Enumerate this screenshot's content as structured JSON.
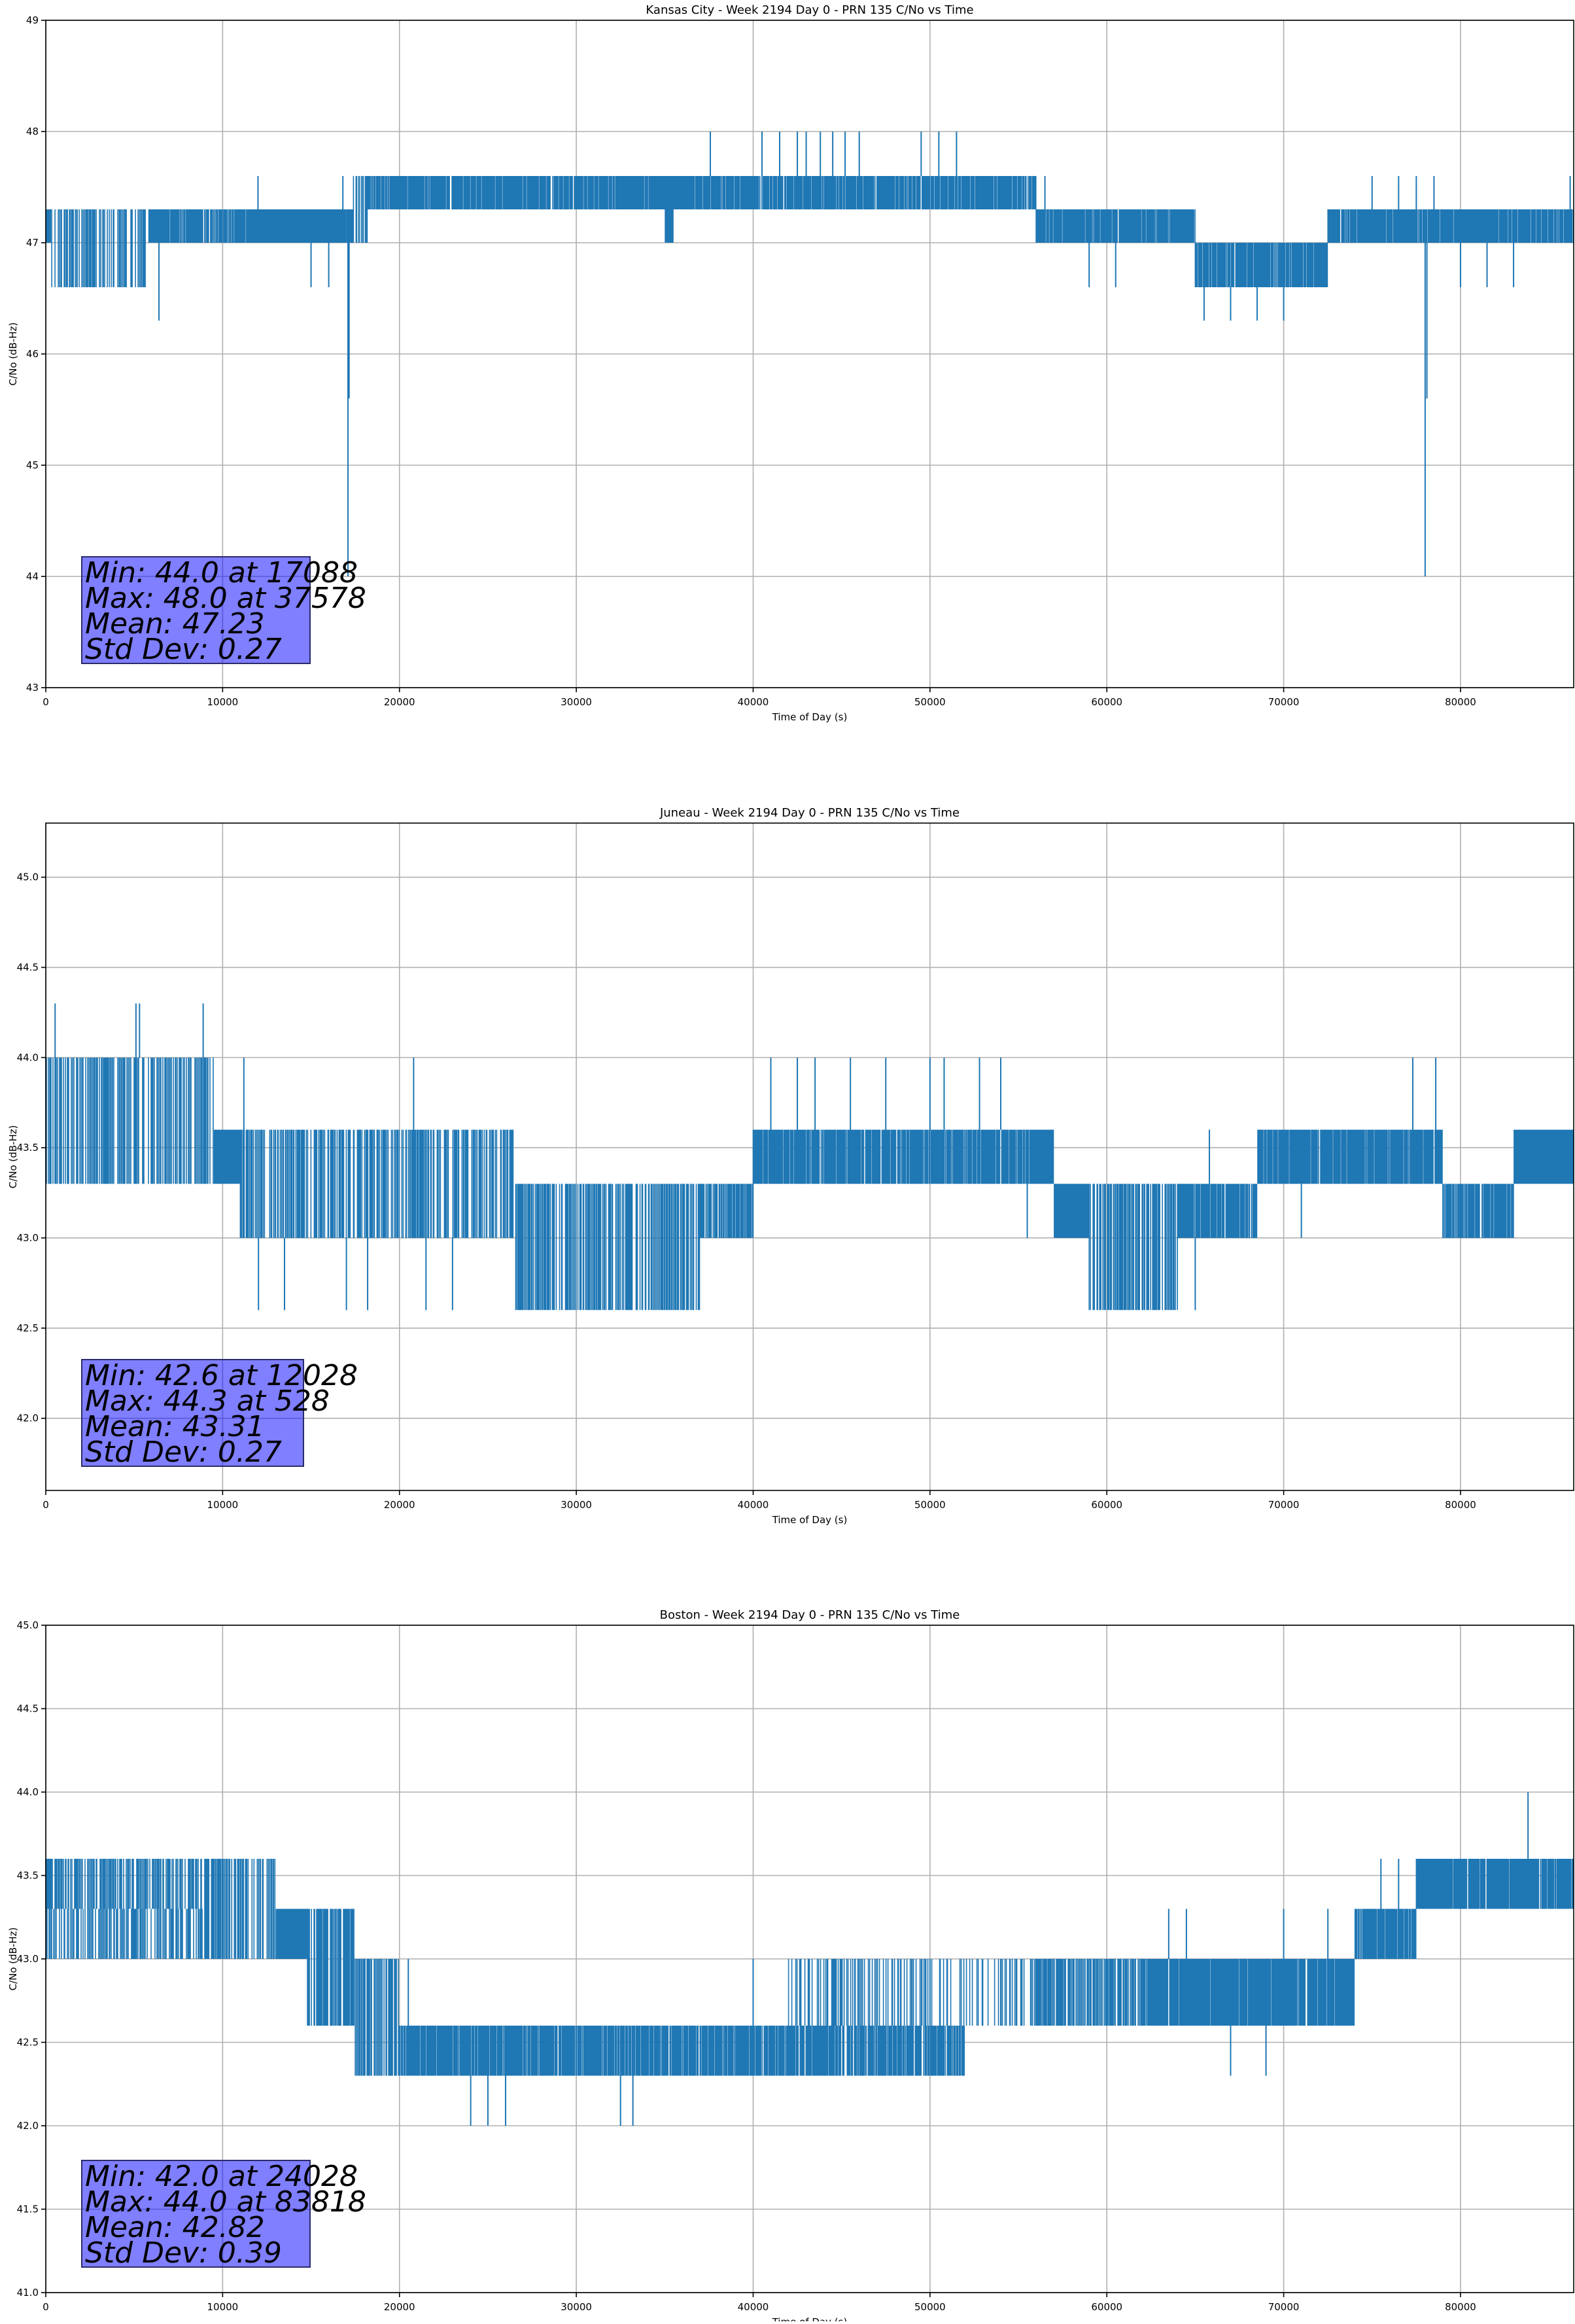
{
  "figure": {
    "background": "#ffffff"
  },
  "chart_data": [
    {
      "type": "line",
      "title": "Kansas City - Week 2194 Day 0 - PRN 135 C/No vs Time",
      "xlabel": "Time of Day (s)",
      "ylabel": "C/No (dB-Hz)",
      "xlim": [
        0,
        86400
      ],
      "ylim": [
        43,
        49
      ],
      "xticks": [
        0,
        10000,
        20000,
        30000,
        40000,
        50000,
        60000,
        70000,
        80000
      ],
      "yticks": [
        43,
        44,
        45,
        46,
        47,
        48,
        49
      ],
      "ytick_labels": [
        "43",
        "44",
        "45",
        "46",
        "47",
        "48",
        "49"
      ],
      "grid": true,
      "color": "#1f77b4",
      "series": [
        {
          "bands": [
            {
              "x": [
                0,
                300
              ],
              "low": 47.0,
              "high": 47.3
            },
            {
              "x": [
                300,
                5800
              ],
              "low": 46.6,
              "high": 47.3,
              "dense": 0.5
            },
            {
              "x": [
                5800,
                6800
              ],
              "low": 47.0,
              "high": 47.3
            },
            {
              "x": [
                6800,
                12000
              ],
              "low": 47.0,
              "high": 47.3,
              "dense": 0.85
            },
            {
              "x": [
                12000,
                17000
              ],
              "low": 47.0,
              "high": 47.3
            },
            {
              "x": [
                17000,
                17400
              ],
              "low": 47.0,
              "high": 47.3
            },
            {
              "x": [
                17400,
                18200
              ],
              "low": 47.0,
              "high": 47.6,
              "dense": 0.6
            },
            {
              "x": [
                18200,
                35000
              ],
              "low": 47.3,
              "high": 47.6,
              "dense": 0.9
            },
            {
              "x": [
                35000,
                35500
              ],
              "low": 47.0,
              "high": 47.6
            },
            {
              "x": [
                35500,
                56000
              ],
              "low": 47.3,
              "high": 47.6,
              "dense": 0.9
            },
            {
              "x": [
                56000,
                65000
              ],
              "low": 47.0,
              "high": 47.3,
              "dense": 0.9
            },
            {
              "x": [
                65000,
                72500
              ],
              "low": 46.6,
              "high": 47.0,
              "dense": 0.92
            },
            {
              "x": [
                72500,
                86400
              ],
              "low": 47.0,
              "high": 47.3,
              "dense": 0.92
            }
          ],
          "spikes": [
            {
              "x": 12000,
              "y": 47.6
            },
            {
              "x": 15000,
              "y": 46.6
            },
            {
              "x": 16000,
              "y": 46.6
            },
            {
              "x": 16800,
              "y": 47.6
            },
            {
              "x": 17088,
              "y": 44.0
            },
            {
              "x": 17150,
              "y": 45.6
            },
            {
              "x": 6400,
              "y": 46.3
            },
            {
              "x": 37578,
              "y": 48.0
            },
            {
              "x": 40500,
              "y": 48.0
            },
            {
              "x": 41500,
              "y": 48.0
            },
            {
              "x": 42500,
              "y": 48.0
            },
            {
              "x": 43000,
              "y": 48.0
            },
            {
              "x": 43800,
              "y": 48.0
            },
            {
              "x": 44500,
              "y": 48.0
            },
            {
              "x": 45200,
              "y": 48.0
            },
            {
              "x": 46000,
              "y": 48.0
            },
            {
              "x": 49500,
              "y": 48.0
            },
            {
              "x": 50500,
              "y": 48.0
            },
            {
              "x": 51500,
              "y": 48.0
            },
            {
              "x": 56500,
              "y": 47.6
            },
            {
              "x": 59000,
              "y": 46.6
            },
            {
              "x": 60500,
              "y": 46.6
            },
            {
              "x": 65500,
              "y": 46.3
            },
            {
              "x": 67000,
              "y": 46.3
            },
            {
              "x": 68500,
              "y": 46.3
            },
            {
              "x": 70000,
              "y": 46.3
            },
            {
              "x": 75000,
              "y": 47.6
            },
            {
              "x": 76500,
              "y": 47.6
            },
            {
              "x": 77500,
              "y": 47.6
            },
            {
              "x": 78000,
              "y": 44.0
            },
            {
              "x": 78100,
              "y": 45.6
            },
            {
              "x": 78500,
              "y": 47.6
            },
            {
              "x": 80000,
              "y": 46.6
            },
            {
              "x": 81500,
              "y": 46.6
            },
            {
              "x": 83000,
              "y": 46.6
            },
            {
              "x": 86200,
              "y": 47.6
            }
          ]
        }
      ],
      "stats": [
        "Min: 44.0 at 17088",
        "Max: 48.0 at 37578",
        "Mean: 47.23",
        "Std Dev: 0.27"
      ]
    },
    {
      "type": "line",
      "title": "Juneau - Week 2194 Day 0 - PRN 135 C/No vs Time",
      "xlabel": "Time of Day (s)",
      "ylabel": "C/No (dB-Hz)",
      "xlim": [
        0,
        86400
      ],
      "ylim": [
        41.6,
        45.3
      ],
      "xticks": [
        0,
        10000,
        20000,
        30000,
        40000,
        50000,
        60000,
        70000,
        80000
      ],
      "yticks": [
        42.0,
        42.5,
        43.0,
        43.5,
        44.0,
        44.5,
        45.0
      ],
      "ytick_labels": [
        "42.0",
        "42.5",
        "43.0",
        "43.5",
        "44.0",
        "44.5",
        "45.0"
      ],
      "grid": true,
      "color": "#1f77b4",
      "series": [
        {
          "bands": [
            {
              "x": [
                0,
                9500
              ],
              "low": 43.3,
              "high": 44.0,
              "dense": 0.55
            },
            {
              "x": [
                9500,
                11000
              ],
              "low": 43.3,
              "high": 43.6
            },
            {
              "x": [
                11000,
                26500
              ],
              "low": 43.0,
              "high": 43.6,
              "dense": 0.6
            },
            {
              "x": [
                26500,
                37000
              ],
              "low": 42.6,
              "high": 43.3,
              "dense": 0.55
            },
            {
              "x": [
                37000,
                40000
              ],
              "low": 43.0,
              "high": 43.3,
              "dense": 0.8
            },
            {
              "x": [
                40000,
                57000
              ],
              "low": 43.3,
              "high": 43.6,
              "dense": 0.9
            },
            {
              "x": [
                57000,
                59000
              ],
              "low": 43.0,
              "high": 43.3
            },
            {
              "x": [
                59000,
                64000
              ],
              "low": 42.6,
              "high": 43.3,
              "dense": 0.6
            },
            {
              "x": [
                64000,
                68500
              ],
              "low": 43.0,
              "high": 43.3,
              "dense": 0.85
            },
            {
              "x": [
                68500,
                79000
              ],
              "low": 43.3,
              "high": 43.6,
              "dense": 0.92
            },
            {
              "x": [
                79000,
                83000
              ],
              "low": 43.0,
              "high": 43.3,
              "dense": 0.85
            },
            {
              "x": [
                83000,
                86400
              ],
              "low": 43.3,
              "high": 43.6
            }
          ],
          "spikes": [
            {
              "x": 528,
              "y": 44.3
            },
            {
              "x": 5100,
              "y": 44.3
            },
            {
              "x": 5300,
              "y": 44.3
            },
            {
              "x": 8900,
              "y": 44.3
            },
            {
              "x": 11200,
              "y": 44.0
            },
            {
              "x": 12028,
              "y": 42.6
            },
            {
              "x": 13500,
              "y": 42.6
            },
            {
              "x": 17000,
              "y": 42.6
            },
            {
              "x": 20800,
              "y": 44.0
            },
            {
              "x": 18200,
              "y": 42.6
            },
            {
              "x": 21500,
              "y": 42.6
            },
            {
              "x": 23000,
              "y": 42.6
            },
            {
              "x": 41000,
              "y": 44.0
            },
            {
              "x": 42500,
              "y": 44.0
            },
            {
              "x": 43500,
              "y": 44.0
            },
            {
              "x": 45500,
              "y": 44.0
            },
            {
              "x": 47500,
              "y": 44.0
            },
            {
              "x": 50000,
              "y": 44.0
            },
            {
              "x": 50800,
              "y": 44.0
            },
            {
              "x": 52800,
              "y": 44.0
            },
            {
              "x": 54000,
              "y": 44.0
            },
            {
              "x": 55500,
              "y": 43.0
            },
            {
              "x": 65000,
              "y": 42.6
            },
            {
              "x": 71000,
              "y": 43.0
            },
            {
              "x": 77300,
              "y": 44.0
            },
            {
              "x": 78600,
              "y": 44.0
            },
            {
              "x": 65800,
              "y": 43.6
            }
          ]
        }
      ],
      "stats": [
        "Min: 42.6 at 12028",
        "Max: 44.3 at 528",
        "Mean: 43.31",
        "Std Dev: 0.27"
      ]
    },
    {
      "type": "line",
      "title": "Boston - Week 2194 Day 0 - PRN 135 C/No vs Time",
      "xlabel": "Time of Day (s)",
      "ylabel": "C/No (dB-Hz)",
      "xlim": [
        0,
        86400
      ],
      "ylim": [
        41.0,
        45.0
      ],
      "xticks": [
        0,
        10000,
        20000,
        30000,
        40000,
        50000,
        60000,
        70000,
        80000
      ],
      "yticks": [
        41.0,
        41.5,
        42.0,
        42.5,
        43.0,
        43.5,
        44.0,
        44.5,
        45.0
      ],
      "ytick_labels": [
        "41.0",
        "41.5",
        "42.0",
        "42.5",
        "43.0",
        "43.5",
        "44.0",
        "44.5",
        "45.0"
      ],
      "grid": true,
      "color": "#1f77b4",
      "series": [
        {
          "bands": [
            {
              "x": [
                0,
                9000
              ],
              "low": 43.3,
              "high": 43.6,
              "dense": 0.55
            },
            {
              "x": [
                0,
                9000
              ],
              "low": 43.0,
              "high": 43.3,
              "dense": 0.5
            },
            {
              "x": [
                9000,
                13000
              ],
              "low": 43.0,
              "high": 43.6,
              "dense": 0.55
            },
            {
              "x": [
                13000,
                14800
              ],
              "low": 43.0,
              "high": 43.3
            },
            {
              "x": [
                14800,
                17500
              ],
              "low": 42.6,
              "high": 43.3,
              "dense": 0.7
            },
            {
              "x": [
                17500,
                20000
              ],
              "low": 42.3,
              "high": 43.0,
              "dense": 0.6
            },
            {
              "x": [
                20000,
                35000
              ],
              "low": 42.3,
              "high": 42.6,
              "dense": 0.9
            },
            {
              "x": [
                35000,
                52000
              ],
              "low": 42.3,
              "high": 42.6,
              "dense": 0.85
            },
            {
              "x": [
                42000,
                56000
              ],
              "low": 42.6,
              "high": 43.0,
              "dense": 0.25
            },
            {
              "x": [
                56000,
                62000
              ],
              "low": 42.6,
              "high": 43.0,
              "dense": 0.7
            },
            {
              "x": [
                62000,
                74000
              ],
              "low": 42.6,
              "high": 43.0,
              "dense": 0.92
            },
            {
              "x": [
                74000,
                77500
              ],
              "low": 43.0,
              "high": 43.3,
              "dense": 0.85
            },
            {
              "x": [
                77500,
                86400
              ],
              "low": 43.3,
              "high": 43.6,
              "dense": 0.95
            }
          ],
          "spikes": [
            {
              "x": 24028,
              "y": 42.0
            },
            {
              "x": 25000,
              "y": 42.0
            },
            {
              "x": 26000,
              "y": 42.0
            },
            {
              "x": 32500,
              "y": 42.0
            },
            {
              "x": 33200,
              "y": 42.0
            },
            {
              "x": 20500,
              "y": 43.0
            },
            {
              "x": 40000,
              "y": 43.0
            },
            {
              "x": 45000,
              "y": 43.0
            },
            {
              "x": 50000,
              "y": 43.0
            },
            {
              "x": 54000,
              "y": 43.0
            },
            {
              "x": 63500,
              "y": 43.3
            },
            {
              "x": 64500,
              "y": 43.3
            },
            {
              "x": 67000,
              "y": 42.3
            },
            {
              "x": 69000,
              "y": 42.3
            },
            {
              "x": 70000,
              "y": 43.3
            },
            {
              "x": 72500,
              "y": 43.3
            },
            {
              "x": 75500,
              "y": 43.6
            },
            {
              "x": 76500,
              "y": 43.6
            },
            {
              "x": 83818,
              "y": 44.0
            },
            {
              "x": 80000,
              "y": 43.3
            },
            {
              "x": 81000,
              "y": 43.3
            },
            {
              "x": 82500,
              "y": 43.3
            },
            {
              "x": 84000,
              "y": 43.3
            }
          ]
        }
      ],
      "stats": [
        "Min: 42.0 at 24028",
        "Max: 44.0 at 83818",
        "Mean: 42.82",
        "Std Dev: 0.39"
      ]
    }
  ]
}
